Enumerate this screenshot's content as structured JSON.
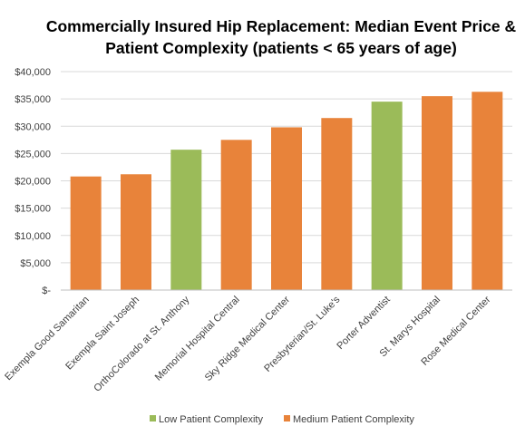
{
  "chart_data": {
    "type": "bar",
    "title": [
      "Commercially Insured Hip Replacement: Median Event Price &",
      "Patient Complexity  (patients < 65 years of age)"
    ],
    "xlabel": "",
    "ylabel": "",
    "categories": [
      "Exempla Good Samaritan",
      "Exempla Saint Joseph",
      "OrthoColorado at St. Anthony",
      "Memorial Hospital Central",
      "Sky Ridge Medical Center",
      "Presbyterian/St. Luke's",
      "Porter Adventist",
      "St. Marys Hospital",
      "Rose Medical Center"
    ],
    "values": [
      20800,
      21200,
      25700,
      27500,
      29800,
      31500,
      34500,
      35500,
      36300
    ],
    "complexity": [
      "Medium",
      "Medium",
      "Low",
      "Medium",
      "Medium",
      "Medium",
      "Low",
      "Medium",
      "Medium"
    ],
    "ylim": [
      0,
      40000
    ],
    "yticks": [
      0,
      5000,
      10000,
      15000,
      20000,
      25000,
      30000,
      35000,
      40000
    ],
    "ytick_labels": [
      "$-",
      "$5,000",
      "$10,000",
      "$15,000",
      "$20,000",
      "$25,000",
      "$30,000",
      "$35,000",
      "$40,000"
    ],
    "grid": true,
    "legend_position": "bottom",
    "legend": [
      {
        "key": "Low",
        "label": "Low Patient Complexity",
        "color": "#9bbb59"
      },
      {
        "key": "Medium",
        "label": "Medium Patient Complexity",
        "color": "#e8833a"
      }
    ]
  }
}
